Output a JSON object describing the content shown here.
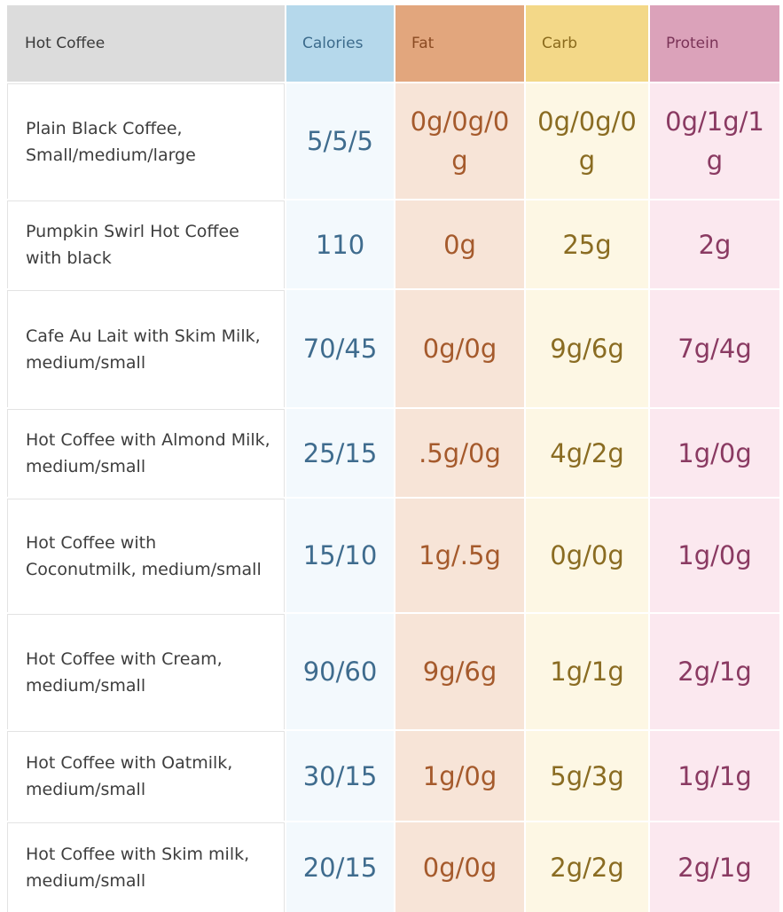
{
  "headers": {
    "name": "Hot Coffee",
    "calories": "Calories",
    "fat": "Fat",
    "carb": "Carb",
    "protein": "Protein"
  },
  "rows": [
    {
      "name": "Plain Black Coffee, Small/medium/large",
      "calories": "5/5/5",
      "fat": "0g/0g/0g",
      "carb": "0g/0g/0g",
      "protein": "0g/1g/1g"
    },
    {
      "name": "Pumpkin Swirl Hot Coffee with black",
      "calories": "110",
      "fat": "0g",
      "carb": "25g",
      "protein": "2g"
    },
    {
      "name": "Cafe Au Lait with Skim Milk, medium/small",
      "calories": "70/45",
      "fat": "0g/0g",
      "carb": "9g/6g",
      "protein": "7g/4g"
    },
    {
      "name": "Hot Coffee with Almond Milk, medium/small",
      "calories": "25/15",
      "fat": ".5g/0g",
      "carb": "4g/2g",
      "protein": "1g/0g"
    },
    {
      "name": "Hot Coffee with Coconutmilk, medium/small",
      "calories": "15/10",
      "fat": "1g/.5g",
      "carb": "0g/0g",
      "protein": "1g/0g"
    },
    {
      "name": "Hot Coffee with Cream, medium/small",
      "calories": "90/60",
      "fat": "9g/6g",
      "carb": "1g/1g",
      "protein": "2g/1g"
    },
    {
      "name": "Hot Coffee with Oatmilk, medium/small",
      "calories": "30/15",
      "fat": "1g/0g",
      "carb": "5g/3g",
      "protein": "1g/1g"
    },
    {
      "name": "Hot Coffee with Skim milk, medium/small",
      "calories": "20/15",
      "fat": "0g/0g",
      "carb": "2g/2g",
      "protein": "2g/1g"
    }
  ]
}
